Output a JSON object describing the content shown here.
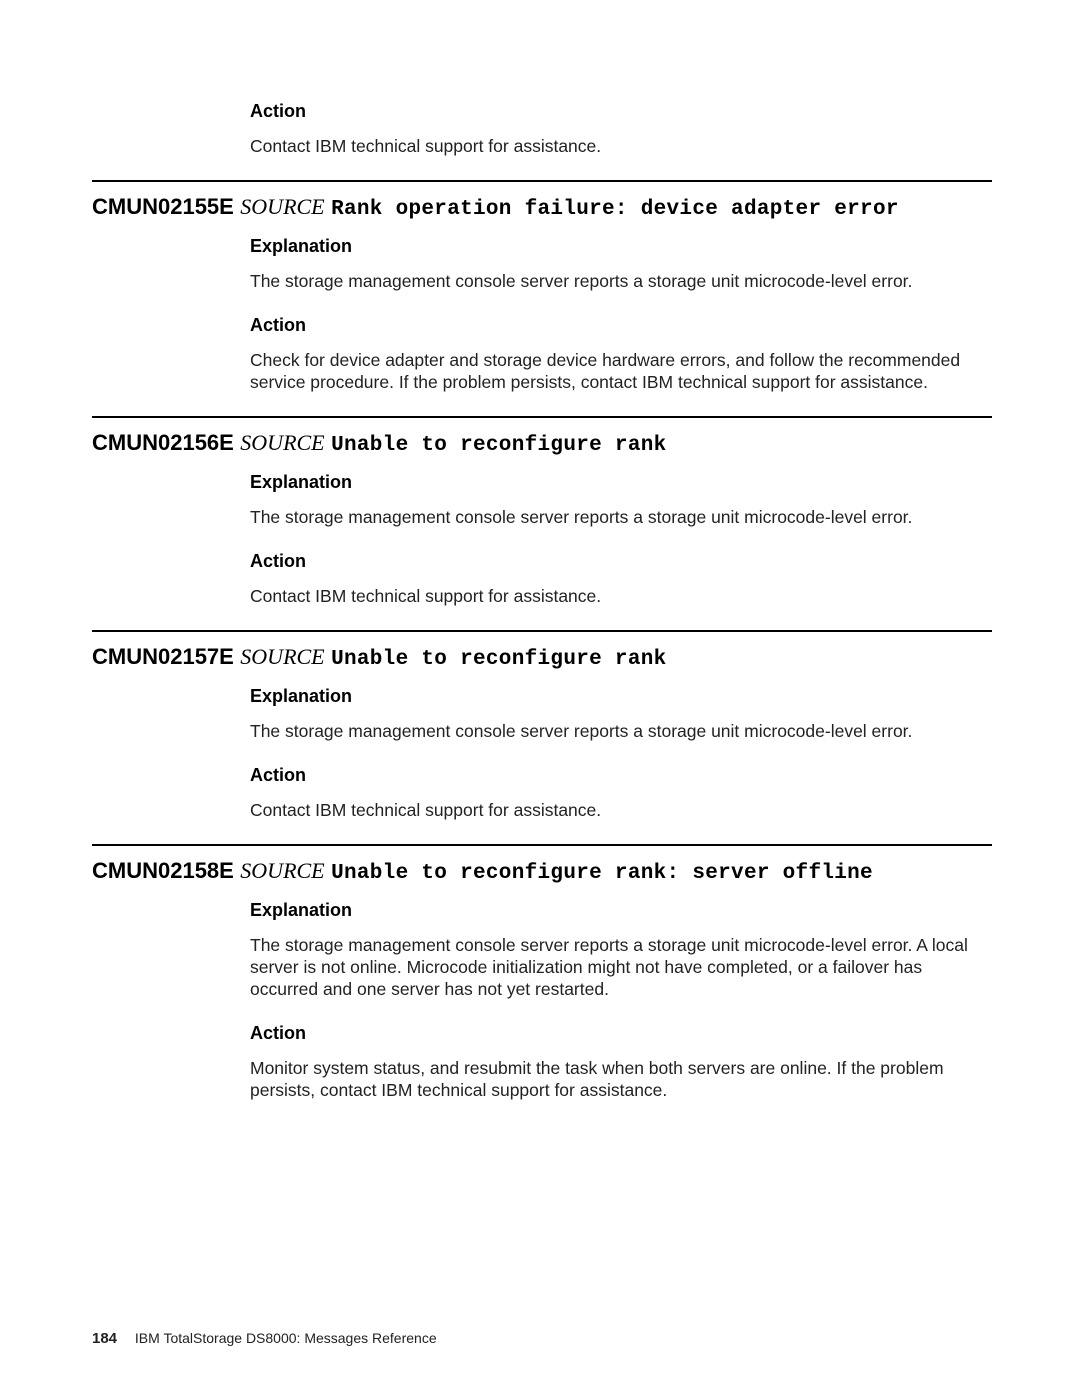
{
  "intro": {
    "action_label": "Action",
    "action_text": "Contact IBM technical support for assistance."
  },
  "messages": [
    {
      "code": "CMUN02155E",
      "source": "SOURCE",
      "title": "Rank operation failure: device adapter error",
      "explanation_label": "Explanation",
      "explanation_text": "The storage management console server reports a storage unit microcode-level error.",
      "action_label": "Action",
      "action_text": "Check for device adapter and storage device hardware errors, and follow the recommended service procedure. If the problem persists, contact IBM technical support for assistance."
    },
    {
      "code": "CMUN02156E",
      "source": "SOURCE",
      "title": "Unable to reconfigure rank",
      "explanation_label": "Explanation",
      "explanation_text": "The storage management console server reports a storage unit microcode-level error.",
      "action_label": "Action",
      "action_text": "Contact IBM technical support for assistance."
    },
    {
      "code": "CMUN02157E",
      "source": "SOURCE",
      "title": "Unable to reconfigure rank",
      "explanation_label": "Explanation",
      "explanation_text": "The storage management console server reports a storage unit microcode-level error.",
      "action_label": "Action",
      "action_text": "Contact IBM technical support for assistance."
    },
    {
      "code": "CMUN02158E",
      "source": "SOURCE",
      "title": "Unable to reconfigure rank: server offline",
      "explanation_label": "Explanation",
      "explanation_text": "The storage management console server reports a storage unit microcode-level error. A local server is not online. Microcode initialization might not have completed, or a failover has occurred and one server has not yet restarted.",
      "action_label": "Action",
      "action_text": "Monitor system status, and resubmit the task when both servers are online. If the problem persists, contact IBM technical support for assistance."
    }
  ],
  "footer": {
    "page_number": "184",
    "doc_title": "IBM TotalStorage DS8000:  Messages Reference"
  }
}
